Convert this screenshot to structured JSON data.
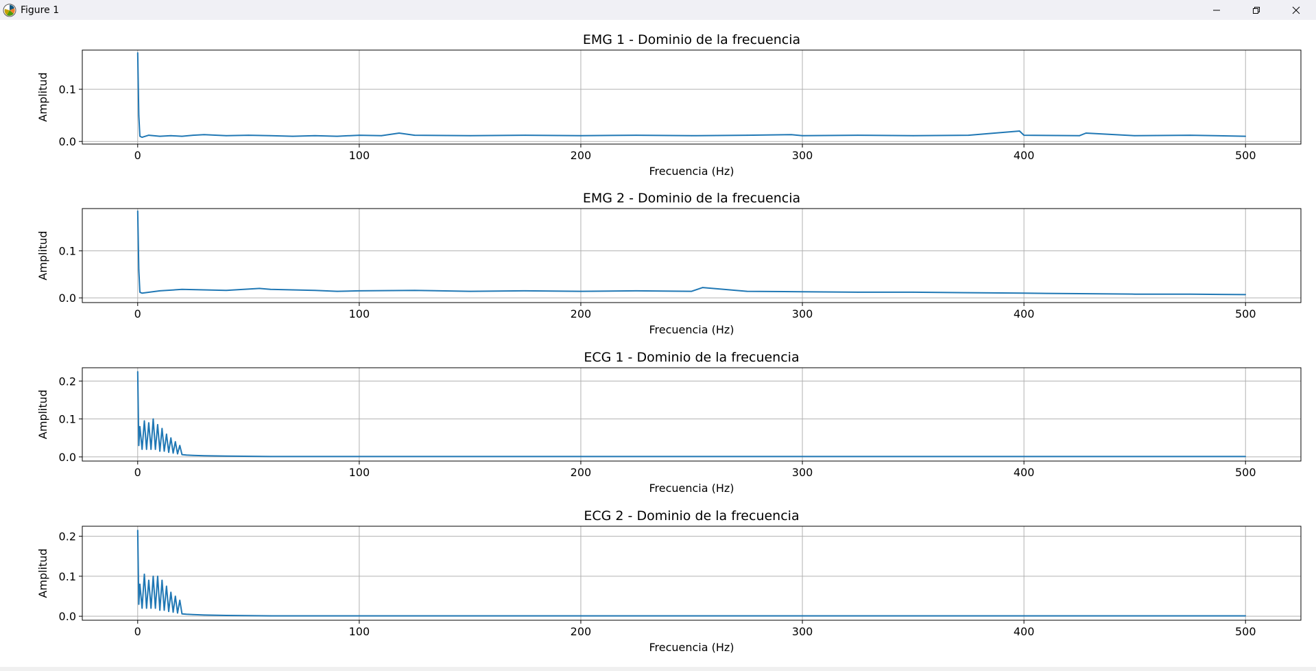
{
  "window": {
    "title": "Figure 1",
    "icon": "matplotlib-icon",
    "controls": {
      "minimize": "minimize-icon",
      "maximize": "restore-icon",
      "close": "close-icon"
    }
  },
  "colors": {
    "line": "#1f77b4",
    "grid": "#b0b0b0",
    "titlebar": "#f0f0f5"
  },
  "chart_data": [
    {
      "type": "line",
      "title": "EMG 1 - Dominio de la frecuencia",
      "xlabel": "Frecuencia (Hz)",
      "ylabel": "Amplitud",
      "xlim": [
        -25,
        525
      ],
      "ylim": [
        -0.005,
        0.175
      ],
      "xticks": [
        0,
        100,
        200,
        300,
        400,
        500
      ],
      "xtick_labels": [
        "0",
        "100",
        "200",
        "300",
        "400",
        "500"
      ],
      "yticks": [
        0.0,
        0.1
      ],
      "ytick_labels": [
        "0.0",
        "0.1"
      ],
      "grid": true,
      "series": [
        {
          "x": [
            0,
            0.5,
            1,
            2,
            5,
            10,
            15,
            20,
            25,
            30,
            40,
            50,
            60,
            70,
            80,
            90,
            100,
            110,
            118,
            125,
            150,
            175,
            200,
            225,
            250,
            275,
            295,
            300,
            325,
            350,
            375,
            398,
            400,
            425,
            428,
            450,
            475,
            500
          ],
          "y": [
            0.17,
            0.05,
            0.01,
            0.008,
            0.012,
            0.01,
            0.011,
            0.01,
            0.012,
            0.013,
            0.011,
            0.012,
            0.011,
            0.01,
            0.011,
            0.01,
            0.012,
            0.011,
            0.016,
            0.012,
            0.011,
            0.012,
            0.011,
            0.012,
            0.011,
            0.012,
            0.013,
            0.011,
            0.012,
            0.011,
            0.012,
            0.02,
            0.012,
            0.011,
            0.016,
            0.011,
            0.012,
            0.01
          ]
        }
      ]
    },
    {
      "type": "line",
      "title": "EMG 2 - Dominio de la frecuencia",
      "xlabel": "Frecuencia (Hz)",
      "ylabel": "Amplitud",
      "xlim": [
        -25,
        525
      ],
      "ylim": [
        -0.01,
        0.19
      ],
      "xticks": [
        0,
        100,
        200,
        300,
        400,
        500
      ],
      "xtick_labels": [
        "0",
        "100",
        "200",
        "300",
        "400",
        "500"
      ],
      "yticks": [
        0.0,
        0.1
      ],
      "ytick_labels": [
        "0.0",
        "0.1"
      ],
      "grid": true,
      "series": [
        {
          "x": [
            0,
            0.5,
            1,
            2,
            10,
            20,
            30,
            40,
            55,
            60,
            70,
            80,
            90,
            100,
            125,
            150,
            175,
            200,
            225,
            250,
            255,
            275,
            300,
            325,
            350,
            375,
            400,
            425,
            450,
            475,
            500
          ],
          "y": [
            0.185,
            0.06,
            0.012,
            0.01,
            0.015,
            0.018,
            0.017,
            0.016,
            0.02,
            0.018,
            0.017,
            0.016,
            0.014,
            0.015,
            0.016,
            0.014,
            0.015,
            0.014,
            0.015,
            0.014,
            0.022,
            0.014,
            0.013,
            0.012,
            0.012,
            0.011,
            0.01,
            0.009,
            0.008,
            0.008,
            0.007
          ]
        }
      ]
    },
    {
      "type": "line",
      "title": "ECG 1 - Dominio de la frecuencia",
      "xlabel": "Frecuencia (Hz)",
      "ylabel": "Amplitud",
      "xlim": [
        -25,
        525
      ],
      "ylim": [
        -0.011,
        0.235
      ],
      "xticks": [
        0,
        100,
        200,
        300,
        400,
        500
      ],
      "xtick_labels": [
        "0",
        "100",
        "200",
        "300",
        "400",
        "500"
      ],
      "yticks": [
        0.0,
        0.1,
        0.2
      ],
      "ytick_labels": [
        "0.0",
        "0.1",
        "0.2"
      ],
      "grid": true,
      "series": [
        {
          "x": [
            0,
            0.5,
            1,
            2,
            3,
            4,
            5,
            6,
            7,
            8,
            9,
            10,
            11,
            12,
            13,
            14,
            15,
            16,
            17,
            18,
            19,
            20,
            22,
            25,
            30,
            40,
            60,
            100,
            200,
            300,
            400,
            500
          ],
          "y": [
            0.225,
            0.03,
            0.08,
            0.02,
            0.095,
            0.02,
            0.09,
            0.02,
            0.1,
            0.02,
            0.085,
            0.015,
            0.075,
            0.015,
            0.06,
            0.012,
            0.05,
            0.01,
            0.04,
            0.008,
            0.03,
            0.006,
            0.005,
            0.004,
            0.003,
            0.002,
            0.001,
            0.001,
            0.001,
            0.001,
            0.001,
            0.001
          ]
        }
      ]
    },
    {
      "type": "line",
      "title": "ECG 2 - Dominio de la frecuencia",
      "xlabel": "Frecuencia (Hz)",
      "ylabel": "Amplitud",
      "xlim": [
        -25,
        525
      ],
      "ylim": [
        -0.01,
        0.225
      ],
      "xticks": [
        0,
        100,
        200,
        300,
        400,
        500
      ],
      "xtick_labels": [
        "0",
        "100",
        "200",
        "300",
        "400",
        "500"
      ],
      "yticks": [
        0.0,
        0.1,
        0.2
      ],
      "ytick_labels": [
        "0.0",
        "0.1",
        "0.2"
      ],
      "grid": true,
      "series": [
        {
          "x": [
            0,
            0.5,
            1,
            2,
            3,
            4,
            5,
            6,
            7,
            8,
            9,
            10,
            11,
            12,
            13,
            14,
            15,
            16,
            17,
            18,
            19,
            20,
            22,
            25,
            30,
            40,
            60,
            100,
            200,
            300,
            400,
            500
          ],
          "y": [
            0.215,
            0.03,
            0.08,
            0.02,
            0.105,
            0.02,
            0.09,
            0.02,
            0.1,
            0.02,
            0.1,
            0.015,
            0.09,
            0.015,
            0.075,
            0.012,
            0.06,
            0.01,
            0.05,
            0.008,
            0.04,
            0.006,
            0.005,
            0.004,
            0.003,
            0.002,
            0.001,
            0.001,
            0.001,
            0.001,
            0.001,
            0.001
          ]
        }
      ]
    }
  ]
}
